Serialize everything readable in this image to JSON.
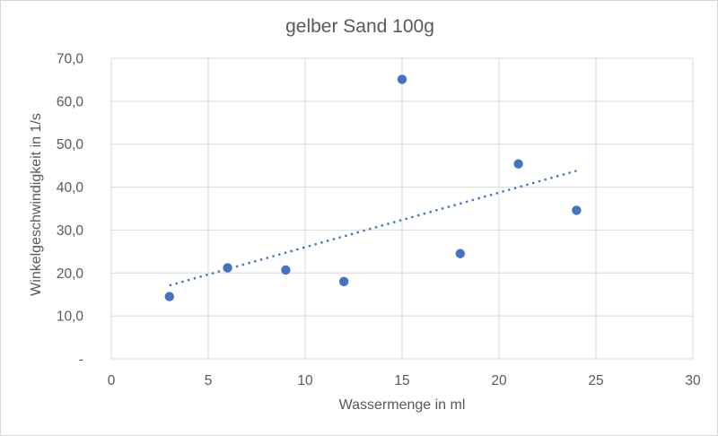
{
  "chart_data": {
    "type": "scatter",
    "title": "gelber Sand 100g",
    "xlabel": "Wassermenge in ml",
    "ylabel": "Winkelgeschwindigkeit in 1/s",
    "xlim": [
      0,
      30
    ],
    "ylim": [
      0,
      70
    ],
    "grid": true,
    "legend": "none",
    "x_ticks": [
      0,
      5,
      10,
      15,
      20,
      25,
      30
    ],
    "x_tick_labels": [
      "0",
      "5",
      "10",
      "15",
      "20",
      "25",
      "30"
    ],
    "y_ticks": [
      0,
      10,
      20,
      30,
      40,
      50,
      60,
      70
    ],
    "y_tick_labels": [
      "-",
      "10,0",
      "20,0",
      "30,0",
      "40,0",
      "50,0",
      "60,0",
      "70,0"
    ],
    "series": [
      {
        "name": "gelber Sand 100g",
        "points": [
          {
            "x": 3,
            "y": 14.5
          },
          {
            "x": 6,
            "y": 21.2
          },
          {
            "x": 9,
            "y": 20.7
          },
          {
            "x": 12,
            "y": 18.0
          },
          {
            "x": 15,
            "y": 65.1
          },
          {
            "x": 18,
            "y": 24.5
          },
          {
            "x": 21,
            "y": 45.4
          },
          {
            "x": 24,
            "y": 34.6
          }
        ]
      }
    ],
    "trendline": {
      "style": "dotted",
      "x_start": 3,
      "y_start": 17.1,
      "x_end": 24,
      "y_end": 43.8
    },
    "colors": {
      "marker": "#4472C4",
      "trendline": "#4472C4",
      "gridline": "#D9D9D9",
      "axis_line": "#D9D9D9",
      "text": "#595959"
    }
  }
}
